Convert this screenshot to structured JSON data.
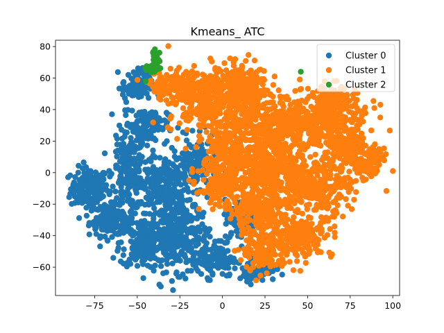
{
  "chart_data": {
    "type": "scatter",
    "title": "Kmeans_ ATC",
    "xlabel": "",
    "ylabel": "",
    "xlim": [
      -98,
      104
    ],
    "ylim": [
      -78,
      84
    ],
    "x_ticks": [
      -75,
      -50,
      -25,
      0,
      25,
      50,
      75,
      100
    ],
    "y_ticks": [
      -60,
      -40,
      -20,
      0,
      20,
      40,
      60,
      80
    ],
    "x_tick_labels": [
      "−75",
      "−50",
      "−25",
      "0",
      "25",
      "50",
      "75",
      "100"
    ],
    "y_tick_labels": [
      "−60",
      "−40",
      "−20",
      "0",
      "20",
      "40",
      "60",
      "80"
    ],
    "grid": false,
    "legend_position": "top-right",
    "series": [
      {
        "name": "Cluster 0",
        "color": "#1f77b4",
        "regions": [
          {
            "cx": -78,
            "cy": -10,
            "rx": 10,
            "ry": 12,
            "n": 180
          },
          {
            "cx": -65,
            "cy": -30,
            "rx": 12,
            "ry": 9,
            "n": 160
          },
          {
            "cx": -55,
            "cy": 0,
            "rx": 9,
            "ry": 22,
            "n": 200
          },
          {
            "cx": -45,
            "cy": -45,
            "rx": 14,
            "ry": 14,
            "n": 200
          },
          {
            "cx": -35,
            "cy": -10,
            "rx": 15,
            "ry": 20,
            "n": 260
          },
          {
            "cx": -25,
            "cy": -40,
            "rx": 16,
            "ry": 20,
            "n": 260
          },
          {
            "cx": -15,
            "cy": 5,
            "rx": 10,
            "ry": 15,
            "n": 130
          },
          {
            "cx": -45,
            "cy": 30,
            "rx": 12,
            "ry": 10,
            "n": 120
          },
          {
            "cx": -50,
            "cy": 55,
            "rx": 8,
            "ry": 10,
            "n": 100
          },
          {
            "cx": -5,
            "cy": -55,
            "rx": 12,
            "ry": 10,
            "n": 120
          },
          {
            "cx": 10,
            "cy": -30,
            "rx": 8,
            "ry": 12,
            "n": 90
          },
          {
            "cx": 20,
            "cy": -62,
            "rx": 10,
            "ry": 6,
            "n": 70
          }
        ]
      },
      {
        "name": "Cluster 1",
        "color": "#ff7f0e",
        "regions": [
          {
            "cx": -10,
            "cy": 45,
            "rx": 20,
            "ry": 18,
            "n": 260
          },
          {
            "cx": 10,
            "cy": 55,
            "rx": 15,
            "ry": 15,
            "n": 220
          },
          {
            "cx": 25,
            "cy": 30,
            "rx": 22,
            "ry": 18,
            "n": 300
          },
          {
            "cx": 50,
            "cy": 30,
            "rx": 20,
            "ry": 16,
            "n": 260
          },
          {
            "cx": 72,
            "cy": 20,
            "rx": 16,
            "ry": 20,
            "n": 260
          },
          {
            "cx": 85,
            "cy": 5,
            "rx": 8,
            "ry": 10,
            "n": 80
          },
          {
            "cx": 5,
            "cy": 10,
            "rx": 15,
            "ry": 15,
            "n": 240
          },
          {
            "cx": 30,
            "cy": 0,
            "rx": 18,
            "ry": 15,
            "n": 260
          },
          {
            "cx": 55,
            "cy": -10,
            "rx": 18,
            "ry": 15,
            "n": 240
          },
          {
            "cx": 20,
            "cy": -25,
            "rx": 15,
            "ry": 12,
            "n": 220
          },
          {
            "cx": 45,
            "cy": -40,
            "rx": 18,
            "ry": 12,
            "n": 200
          },
          {
            "cx": 25,
            "cy": -50,
            "rx": 12,
            "ry": 12,
            "n": 160
          },
          {
            "cx": -30,
            "cy": 55,
            "rx": 12,
            "ry": 8,
            "n": 120
          },
          {
            "cx": 0,
            "cy": -10,
            "rx": 12,
            "ry": 12,
            "n": 140
          },
          {
            "cx": 65,
            "cy": 45,
            "rx": 12,
            "ry": 10,
            "n": 120
          }
        ]
      },
      {
        "name": "Cluster 2",
        "color": "#2ca02c",
        "regions": [
          {
            "cx": -39,
            "cy": 71,
            "rx": 2.5,
            "ry": 6,
            "n": 40
          },
          {
            "cx": -42,
            "cy": 66,
            "rx": 3,
            "ry": 2,
            "n": 25
          }
        ],
        "points": [
          [
            46,
            64
          ],
          [
            -45,
            58
          ]
        ]
      }
    ]
  }
}
